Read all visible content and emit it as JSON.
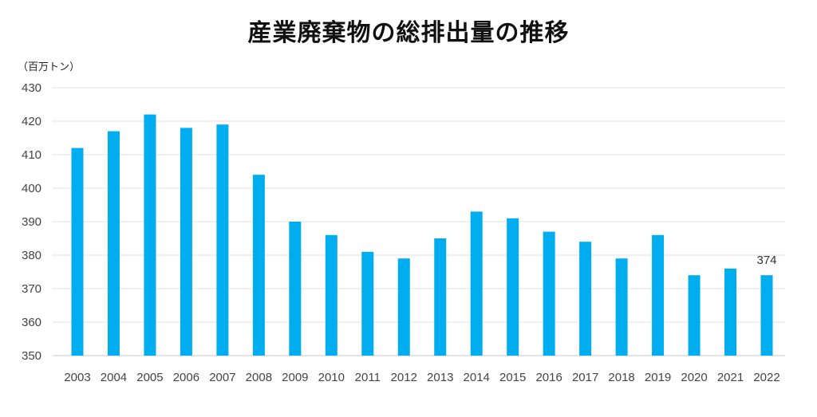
{
  "chart_data": {
    "type": "bar",
    "title": "産業廃棄物の総排出量の推移",
    "ylabel": "（百万トン）",
    "xlabel": "",
    "categories": [
      "2003",
      "2004",
      "2005",
      "2006",
      "2007",
      "2008",
      "2009",
      "2010",
      "2011",
      "2012",
      "2013",
      "2014",
      "2015",
      "2016",
      "2017",
      "2018",
      "2019",
      "2020",
      "2021",
      "2022"
    ],
    "values": [
      412,
      417,
      422,
      418,
      419,
      404,
      390,
      386,
      381,
      379,
      385,
      393,
      391,
      387,
      384,
      379,
      386,
      374,
      376,
      374
    ],
    "ylim": [
      350,
      430
    ],
    "yticks": [
      350,
      360,
      370,
      380,
      390,
      400,
      410,
      420,
      430
    ],
    "grid": true,
    "bar_color": "#00AEEF",
    "data_labels": [
      {
        "category": "2022",
        "text": "374"
      }
    ]
  }
}
